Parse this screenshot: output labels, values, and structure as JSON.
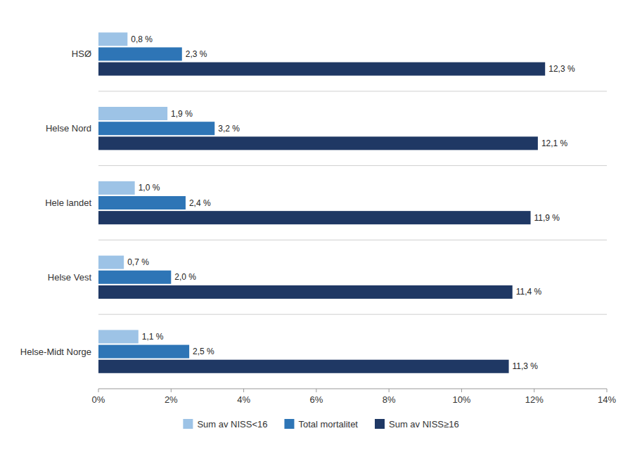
{
  "chart_data": {
    "type": "bar",
    "orientation": "horizontal",
    "categories": [
      "HSØ",
      "Helse Nord",
      "Hele landet",
      "Helse Vest",
      "Helse-Midt Norge"
    ],
    "series": [
      {
        "name": "Sum av NISS<16",
        "color": "#9DC3E6",
        "values": [
          0.8,
          1.9,
          1.0,
          0.7,
          1.1
        ],
        "value_labels": [
          "0,8 %",
          "1,9 %",
          "1,0 %",
          "0,7 %",
          "1,1 %"
        ]
      },
      {
        "name": "Total mortalitet",
        "color": "#2E75B6",
        "values": [
          2.3,
          3.2,
          2.4,
          2.0,
          2.5
        ],
        "value_labels": [
          "2,3 %",
          "3,2 %",
          "2,4 %",
          "2,0 %",
          "2,5 %"
        ]
      },
      {
        "name": "Sum av NISS≥16",
        "color": "#1F3864",
        "values": [
          12.3,
          12.1,
          11.9,
          11.4,
          11.3
        ],
        "value_labels": [
          "12,3 %",
          "12,1 %",
          "11,9 %",
          "11,4 %",
          "11,3 %"
        ]
      }
    ],
    "xlim": [
      0,
      14
    ],
    "xticks": [
      {
        "value": 0,
        "label": "0%"
      },
      {
        "value": 2,
        "label": "2%"
      },
      {
        "value": 4,
        "label": "4%"
      },
      {
        "value": 6,
        "label": "6%"
      },
      {
        "value": 8,
        "label": "8%"
      },
      {
        "value": 10,
        "label": "10%"
      },
      {
        "value": 12,
        "label": "12%"
      },
      {
        "value": 14,
        "label": "14%"
      }
    ],
    "data_labels": true,
    "legend": "bottom",
    "grid": false
  }
}
